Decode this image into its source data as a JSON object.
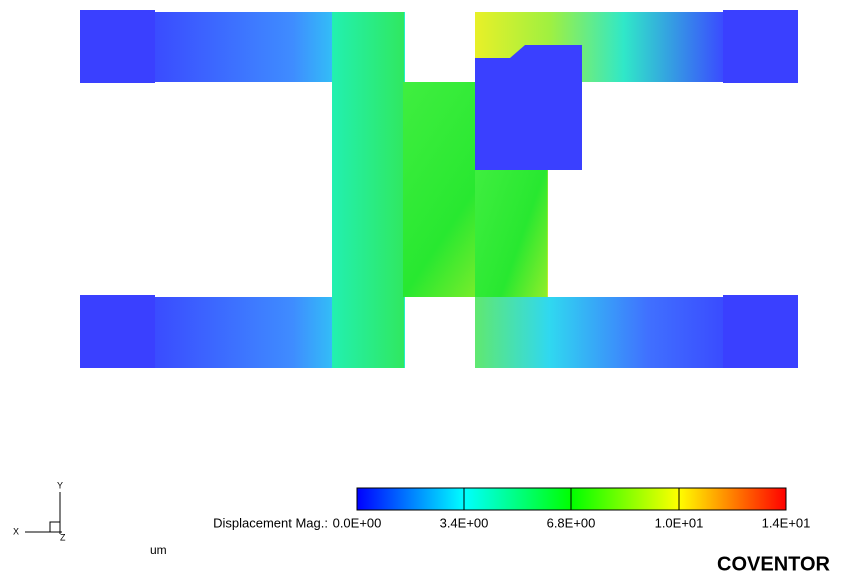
{
  "legend": {
    "label": "Displacement Mag.:",
    "ticks": [
      "0.0E+00",
      "3.4E+00",
      "6.8E+00",
      "1.0E+01",
      "1.4E+01"
    ],
    "unit": "um"
  },
  "axes": {
    "x": "X",
    "y": "Y",
    "z": "Z"
  },
  "brand": "COVENTOR"
}
